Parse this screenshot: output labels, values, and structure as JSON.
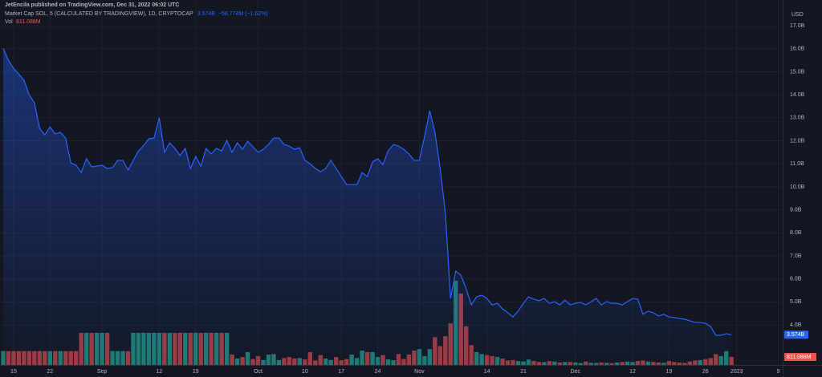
{
  "chart_data": {
    "type": "line",
    "published": "JetEncila published on TradingView.com, Dec 31, 2022 06:02 UTC",
    "y_unit": "USD",
    "grid": true,
    "categories": [
      null,
      null,
      "15",
      null,
      null,
      null,
      null,
      null,
      null,
      "22",
      null,
      null,
      null,
      null,
      null,
      null,
      null,
      null,
      null,
      "Sep",
      null,
      null,
      null,
      null,
      null,
      null,
      null,
      null,
      null,
      null,
      "12",
      null,
      null,
      null,
      null,
      null,
      null,
      "19",
      null,
      null,
      null,
      null,
      null,
      null,
      null,
      null,
      null,
      null,
      null,
      "Oct",
      null,
      null,
      null,
      null,
      null,
      null,
      null,
      null,
      "10",
      null,
      null,
      null,
      null,
      null,
      null,
      "17",
      null,
      null,
      null,
      null,
      null,
      null,
      "24",
      null,
      null,
      null,
      null,
      null,
      null,
      null,
      "Nov",
      null,
      null,
      null,
      null,
      null,
      null,
      null,
      null,
      null,
      null,
      null,
      null,
      "14",
      null,
      null,
      null,
      null,
      null,
      null,
      "21",
      null,
      null,
      null,
      null,
      null,
      null,
      null,
      null,
      null,
      "Dec",
      null,
      null,
      null,
      null,
      null,
      null,
      null,
      null,
      null,
      null,
      "12",
      null,
      null,
      null,
      null,
      null,
      null,
      "19",
      null,
      null,
      null,
      null,
      null,
      null,
      "26",
      null,
      null,
      null,
      null,
      null,
      "2023",
      null,
      null,
      null,
      null,
      null,
      null,
      null,
      "9"
    ],
    "series": [
      {
        "name": "Market Cap SOL, 5 (CALCULATED BY TRADINGVIEW), 1D, CRYPTOCAP",
        "color": "#2962ff",
        "last_label": "3.574B",
        "change_label": "−58.774M (−1.62%)",
        "values": [
          16.02,
          15.5,
          15.15,
          14.9,
          14.63,
          14.0,
          13.65,
          12.54,
          12.26,
          12.6,
          12.3,
          12.37,
          12.12,
          11.04,
          10.94,
          10.62,
          11.22,
          10.87,
          10.9,
          10.94,
          10.8,
          10.83,
          11.15,
          11.15,
          10.73,
          11.15,
          11.56,
          11.8,
          12.09,
          12.12,
          13.0,
          11.5,
          11.91,
          11.67,
          11.36,
          11.67,
          10.8,
          11.32,
          10.9,
          11.67,
          11.43,
          11.67,
          11.56,
          12.02,
          11.5,
          11.91,
          11.63,
          11.98,
          11.74,
          11.5,
          11.63,
          11.84,
          12.12,
          12.12,
          11.84,
          11.77,
          11.63,
          11.7,
          11.15,
          11.0,
          10.8,
          10.66,
          10.8,
          11.15,
          10.8,
          10.45,
          10.1,
          10.1,
          10.1,
          10.62,
          10.45,
          11.08,
          11.22,
          10.97,
          11.56,
          11.84,
          11.77,
          11.63,
          11.43,
          11.15,
          11.15,
          12.19,
          13.31,
          12.37,
          10.8,
          8.88,
          5.15,
          6.34,
          6.16,
          5.57,
          4.87,
          5.22,
          5.29,
          5.15,
          4.87,
          4.94,
          4.7,
          4.53,
          4.35,
          4.6,
          4.94,
          5.22,
          5.12,
          5.05,
          5.15,
          4.94,
          5.01,
          4.87,
          5.08,
          4.87,
          4.94,
          4.98,
          4.87,
          5.01,
          5.15,
          4.87,
          5.01,
          4.94,
          4.94,
          4.87,
          5.01,
          5.15,
          5.12,
          4.46,
          4.6,
          4.53,
          4.39,
          4.46,
          4.35,
          4.32,
          4.28,
          4.25,
          4.18,
          4.11,
          4.11,
          4.07,
          3.93,
          3.55,
          3.55,
          3.62,
          3.574,
          null,
          null,
          null,
          null,
          null,
          null,
          null,
          null,
          null
        ]
      },
      {
        "name": "Vol",
        "axis": "y2",
        "up_color": "#1f7a70",
        "down_color": "#9e3a40",
        "last_label": "811.088M",
        "values": [
          1400,
          1400,
          1400,
          1400,
          1400,
          1400,
          1400,
          1400,
          1400,
          1400,
          1400,
          1400,
          1400,
          1400,
          1400,
          3240,
          3240,
          3240,
          3240,
          3240,
          3240,
          1400,
          1400,
          1400,
          1400,
          3240,
          3240,
          3240,
          3240,
          3240,
          3240,
          3240,
          3240,
          3240,
          3240,
          3240,
          3240,
          3240,
          3240,
          3240,
          3240,
          3240,
          3240,
          3240,
          1050,
          650,
          800,
          1300,
          600,
          900,
          500,
          1050,
          1100,
          500,
          700,
          800,
          650,
          700,
          560,
          1300,
          450,
          1000,
          650,
          500,
          800,
          480,
          600,
          1050,
          700,
          1450,
          1300,
          1300,
          800,
          1000,
          570,
          480,
          1100,
          600,
          1050,
          1450,
          1600,
          900,
          1600,
          2800,
          1900,
          2900,
          4200,
          8500,
          7200,
          3900,
          2000,
          1300,
          1100,
          1000,
          900,
          800,
          650,
          450,
          500,
          400,
          350,
          550,
          400,
          300,
          280,
          400,
          350,
          250,
          300,
          300,
          250,
          200,
          350,
          220,
          200,
          250,
          220,
          180,
          250,
          300,
          350,
          300,
          400,
          450,
          350,
          300,
          250,
          220,
          400,
          300,
          250,
          200,
          350,
          450,
          500,
          600,
          700,
          1100,
          900,
          1400,
          811.088,
          null,
          null,
          null,
          null,
          null,
          null,
          null,
          null,
          null
        ]
      }
    ],
    "ylim": [
      2.26,
      17.77
    ],
    "yticks": [
      {
        "value": 4,
        "label": "4.0B"
      },
      {
        "value": 5,
        "label": "5.0B"
      },
      {
        "value": 6,
        "label": "6.0B"
      },
      {
        "value": 7,
        "label": "7.0B"
      },
      {
        "value": 8,
        "label": "8.0B"
      },
      {
        "value": 9,
        "label": "9.0B"
      },
      {
        "value": 10,
        "label": "10.0B"
      },
      {
        "value": 11,
        "label": "11.0B"
      },
      {
        "value": 12,
        "label": "12.0B"
      },
      {
        "value": 13,
        "label": "13.0B"
      },
      {
        "value": 14,
        "label": "14.0B"
      },
      {
        "value": 15,
        "label": "15.0B"
      },
      {
        "value": 16,
        "label": "16.0B"
      },
      {
        "value": 17,
        "label": "17.0B"
      }
    ],
    "y2lim": [
      0,
      36000
    ]
  }
}
